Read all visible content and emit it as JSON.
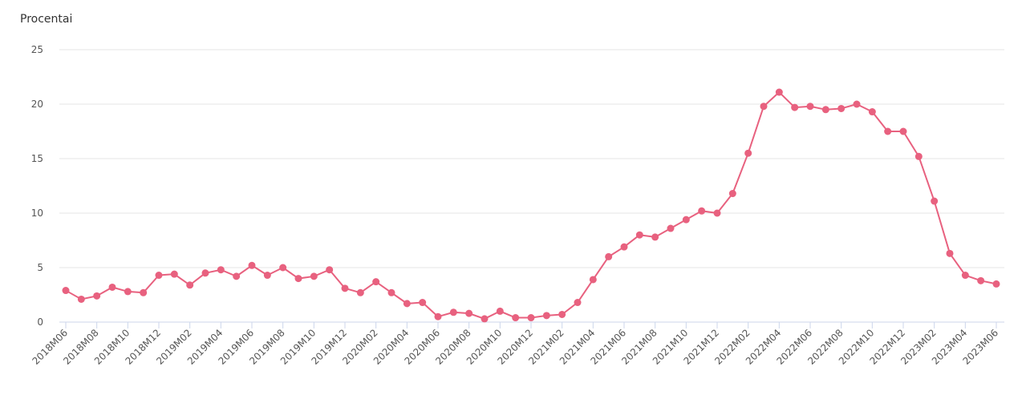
{
  "chart_data": {
    "type": "line",
    "title": "",
    "xlabel": "",
    "ylabel": "Procentai",
    "ylim": [
      0,
      25
    ],
    "yticks": [
      0,
      5,
      10,
      15,
      20,
      25
    ],
    "grid": true,
    "x": [
      "2018M06",
      "2018M07",
      "2018M08",
      "2018M09",
      "2018M10",
      "2018M11",
      "2018M12",
      "2019M01",
      "2019M02",
      "2019M03",
      "2019M04",
      "2019M05",
      "2019M06",
      "2019M07",
      "2019M08",
      "2019M09",
      "2019M10",
      "2019M11",
      "2019M12",
      "2020M01",
      "2020M02",
      "2020M03",
      "2020M04",
      "2020M05",
      "2020M06",
      "2020M07",
      "2020M08",
      "2020M09",
      "2020M10",
      "2020M11",
      "2020M12",
      "2021M01",
      "2021M02",
      "2021M03",
      "2021M04",
      "2021M05",
      "2021M06",
      "2021M07",
      "2021M08",
      "2021M09",
      "2021M10",
      "2021M11",
      "2021M12",
      "2022M01",
      "2022M02",
      "2022M03",
      "2022M04",
      "2022M05",
      "2022M06",
      "2022M07",
      "2022M08",
      "2022M09",
      "2022M10",
      "2022M11",
      "2022M12",
      "2023M01",
      "2023M02",
      "2023M03",
      "2023M04",
      "2023M05",
      "2023M06"
    ],
    "x_tick_labels": [
      "2018M06",
      "2018M08",
      "2018M10",
      "2018M12",
      "2019M02",
      "2019M04",
      "2019M06",
      "2019M08",
      "2019M10",
      "2019M12",
      "2020M02",
      "2020M04",
      "2020M06",
      "2020M08",
      "2020M10",
      "2020M12",
      "2021M02",
      "2021M04",
      "2021M06",
      "2021M08",
      "2021M10",
      "2021M12",
      "2022M02",
      "2022M04",
      "2022M06",
      "2022M08",
      "2022M10",
      "2022M12",
      "2023M02",
      "2023M04",
      "2023M06"
    ],
    "series": [
      {
        "color": "#e8617f",
        "values": [
          2.9,
          2.1,
          2.4,
          3.2,
          2.8,
          2.7,
          4.3,
          4.4,
          3.4,
          4.5,
          4.8,
          4.2,
          5.2,
          4.3,
          5.0,
          4.0,
          4.2,
          4.8,
          3.1,
          2.7,
          3.7,
          2.7,
          1.7,
          1.8,
          0.5,
          0.9,
          0.8,
          0.3,
          1.0,
          0.4,
          0.4,
          0.6,
          0.7,
          1.8,
          3.9,
          6.0,
          6.9,
          8.0,
          7.8,
          8.6,
          9.4,
          10.2,
          10.0,
          11.8,
          15.5,
          19.8,
          21.1,
          19.7,
          19.8,
          19.5,
          19.6,
          20.0,
          19.3,
          17.5,
          17.5,
          15.2,
          11.1,
          6.3,
          4.3,
          3.8,
          3.5
        ]
      }
    ]
  }
}
